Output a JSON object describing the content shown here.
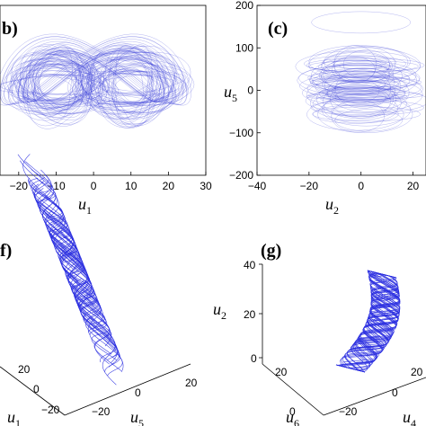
{
  "chart_data": [
    {
      "panel_label": "b)",
      "type": "line",
      "xlabel": "u",
      "xlabel_sub": "1",
      "ylabel": "",
      "xlim": [
        -25,
        30
      ],
      "ylim": [
        -30,
        30
      ],
      "xticks": [
        -20,
        -10,
        0,
        10,
        20,
        30
      ],
      "xtick_labels": [
        "−20",
        "−10",
        "0",
        "10",
        "20",
        "30"
      ],
      "series": [
        {
          "description_points": "butterfly attractor with two lobes centred near (-10, 0) and (10, 0)",
          "lobe_centers": [
            [
              -10,
              0
            ],
            [
              10,
              0
            ]
          ]
        }
      ]
    },
    {
      "panel_label": "(c)",
      "type": "line",
      "xlabel": "u",
      "xlabel_sub": "2",
      "ylabel": "u",
      "ylabel_sub": "5",
      "xlim": [
        -40,
        25
      ],
      "ylim": [
        -200,
        200
      ],
      "xticks": [
        -40,
        -20,
        0,
        20
      ],
      "xtick_labels": [
        "−40",
        "−20",
        "0",
        "20"
      ],
      "yticks": [
        200,
        100,
        0,
        -100,
        -200
      ],
      "ytick_labels": [
        "200",
        "100",
        "0",
        "−100",
        "−200"
      ]
    },
    {
      "panel_label": "f)",
      "type": "scatter",
      "projection": "3d",
      "axis_labels": [
        {
          "text": "u",
          "sub": "1"
        },
        {
          "text": "u",
          "sub": "5"
        }
      ],
      "tick_labels_a": [
        "20",
        "0",
        "−20"
      ],
      "tick_labels_b": [
        "−20",
        "0",
        "20"
      ]
    },
    {
      "panel_label": "(g)",
      "type": "scatter",
      "projection": "3d",
      "axis_labels": [
        {
          "text": "u",
          "sub": "2"
        },
        {
          "text": "u",
          "sub": "6"
        },
        {
          "text": "u",
          "sub": "4"
        }
      ],
      "z_tick_labels": [
        "40",
        "20",
        "0"
      ],
      "tick_labels_a": [
        "20",
        "0"
      ],
      "tick_labels_b": [
        "−20",
        "0"
      ],
      "tick_labels_c": [
        "20"
      ]
    }
  ],
  "colors": {
    "trajectory": "#3b3fd8",
    "axes": "#000000"
  }
}
